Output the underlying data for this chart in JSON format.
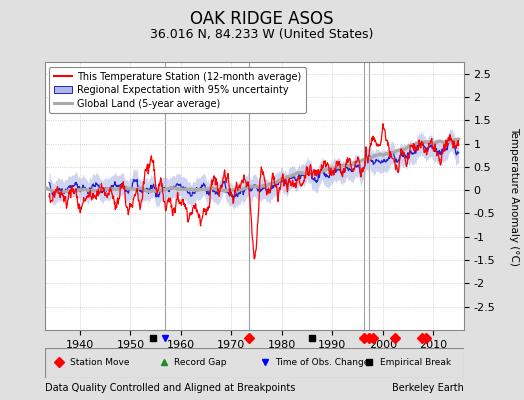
{
  "title": "OAK RIDGE ASOS",
  "subtitle": "36.016 N, 84.233 W (United States)",
  "ylabel": "Temperature Anomaly (°C)",
  "footer_left": "Data Quality Controlled and Aligned at Breakpoints",
  "footer_right": "Berkeley Earth",
  "xlim": [
    1933,
    2016
  ],
  "ylim": [
    -3.0,
    2.75
  ],
  "yticks": [
    -2.5,
    -2,
    -1.5,
    -1,
    -0.5,
    0,
    0.5,
    1,
    1.5,
    2,
    2.5
  ],
  "ytick_labels": [
    "-2.5",
    "-2",
    "-1.5",
    "-1",
    "-0.5",
    "0",
    "0.5",
    "1",
    "1.5",
    "2",
    "2.5"
  ],
  "xticks": [
    1940,
    1950,
    1960,
    1970,
    1980,
    1990,
    2000,
    2010
  ],
  "bg_color": "#e0e0e0",
  "plot_bg_color": "#ffffff",
  "grid_color": "#bbbbbb",
  "station_move_years": [
    1973.5,
    1996.3,
    1997.2,
    1998.0,
    2002.4,
    2007.8,
    2008.6
  ],
  "time_obs_change_years": [
    1956.8
  ],
  "empirical_break_years": [
    1954.5,
    1986.0
  ],
  "vertical_lines": [
    1956.8,
    1973.5,
    1996.3,
    1997.2
  ],
  "seed": 42,
  "title_fontsize": 12,
  "subtitle_fontsize": 9,
  "legend_fontsize": 7,
  "footer_fontsize": 7,
  "tick_fontsize": 8,
  "ylabel_fontsize": 7.5
}
